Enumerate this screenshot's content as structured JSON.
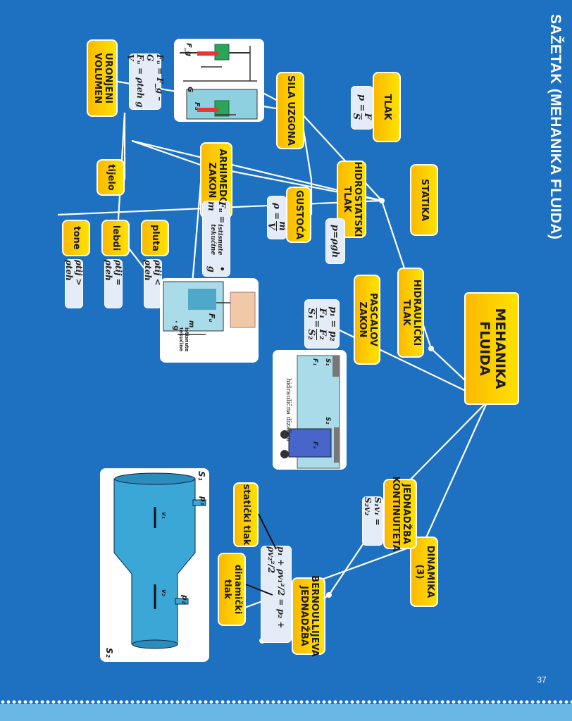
{
  "title": "SAŽETAK (MEHANIKA FLUIDA)",
  "page_number": "37",
  "colors": {
    "background": "#1e70c1",
    "node": "#ffd500",
    "formula_box": "#e3ecf7",
    "line": "#ffffff"
  },
  "nodes": {
    "root": "MEHANIKA FLUIDA",
    "statika": "STATIKA",
    "dinamika": "DINAMIKA (3)",
    "tlak": "TLAK",
    "hidrostatski": "HIDROSTATSKI TLAK",
    "hidraulicki": "HIDRAULIČKI TLAK",
    "pascal": "PASCALOV ZAKON",
    "gustoca": "GUSTOĆA",
    "sila_uzgona": "SILA UZGONA",
    "arhimedov": "ARHIMEDOV ZAKON",
    "uronjeni": "URONJENI VOLUMEN",
    "tijelo": "tijelo",
    "tone": "tone",
    "lebdi": "lebdi",
    "pluta": "pluta",
    "jednadzba_kont": "JEDNADŽBA KONTINUITETA",
    "bernoulli": "BERNOULLIJEVA JEDNADŽBA",
    "staticki": "statički tlak",
    "dinamicki": "dinamički tlak"
  },
  "formulas": {
    "tlak_p": "p =",
    "tlak_num": "F",
    "tlak_den": "S",
    "hidro": "p=ρgh",
    "gustoca_p": "ρ =",
    "gustoca_num": "m",
    "gustoca_den": "V",
    "pascal_1": "p₁ = p₂",
    "pascal_2a": "F₁",
    "pascal_2b": "S₁",
    "pascal_2c": "F₂",
    "pascal_2d": "S₂",
    "uzgon_1": "Fᵤ = F_g – G",
    "uzgon_2": "Fᵤ = ρteh g V",
    "arhimed_a": "Fᵤ = m",
    "arhimed_sub": "istisnute tekućine",
    "arhimed_b": "• g",
    "tone": "ρtij > ρteh",
    "lebdi": "ρtij = ρteh",
    "pluta": "ρtij < ρteh",
    "kontinuitet": "S₁v₁ = S₂v₂",
    "bernoulli": "p₁ + ρv₁²/2 = p₂ + ρv₂²/2"
  },
  "illustration_labels": {
    "lift": "hidraulična dizalica",
    "pipe_s1": "S₁",
    "pipe_s2": "S₂",
    "pipe_p1": "p₁",
    "pipe_p2": "p₂",
    "pipe_v1": "v₁",
    "pipe_v2": "v₂",
    "hand_fu": "Fᵤ",
    "hand_m": "m",
    "hand_m_sub": "istisnute tekućine",
    "hand_g": "· g",
    "spring_fg": "F_g",
    "spring_fu": "Fᵤ",
    "spring_g": "G",
    "lift_f1": "F₁",
    "lift_f2": "F₂",
    "lift_s1": "S₁",
    "lift_s2": "S₂"
  }
}
